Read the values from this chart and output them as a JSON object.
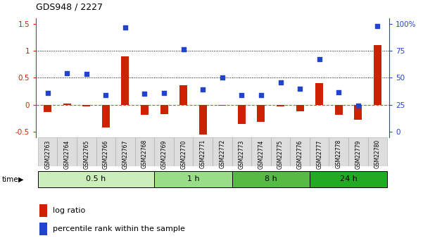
{
  "title": "GDS948 / 2227",
  "samples": [
    "GSM22763",
    "GSM22764",
    "GSM22765",
    "GSM22766",
    "GSM22767",
    "GSM22768",
    "GSM22769",
    "GSM22770",
    "GSM22771",
    "GSM22772",
    "GSM22773",
    "GSM22774",
    "GSM22775",
    "GSM22776",
    "GSM22777",
    "GSM22778",
    "GSM22779",
    "GSM22780"
  ],
  "log_ratio": [
    -0.13,
    0.03,
    -0.03,
    -0.42,
    0.9,
    -0.18,
    -0.17,
    0.36,
    -0.55,
    -0.02,
    -0.35,
    -0.32,
    -0.03,
    -0.12,
    0.4,
    -0.18,
    -0.28,
    1.1
  ],
  "percentile_left": [
    0.22,
    0.58,
    0.57,
    0.18,
    1.43,
    0.21,
    0.22,
    1.03,
    0.28,
    0.5,
    0.18,
    0.18,
    0.42,
    0.3,
    0.85,
    0.23,
    -0.02,
    1.46
  ],
  "time_groups": [
    {
      "label": "0.5 h",
      "start": 0,
      "end": 6,
      "color": "#cceebb"
    },
    {
      "label": "1 h",
      "start": 6,
      "end": 10,
      "color": "#99dd88"
    },
    {
      "label": "8 h",
      "start": 10,
      "end": 14,
      "color": "#55bb44"
    },
    {
      "label": "24 h",
      "start": 14,
      "end": 18,
      "color": "#22aa22"
    }
  ],
  "ylim": [
    -0.6,
    1.6
  ],
  "yticks_left": [
    -0.5,
    0.0,
    0.5,
    1.0,
    1.5
  ],
  "bar_color": "#cc2200",
  "dot_color": "#2244cc",
  "dotted_lines": [
    0.5,
    1.0
  ],
  "bar_width": 0.4,
  "dot_size": 22,
  "right_tick_positions": [
    -0.5,
    0.0,
    0.5,
    1.0,
    1.5
  ],
  "right_tick_labels": [
    "0",
    "25",
    "50",
    "75",
    "100%"
  ]
}
